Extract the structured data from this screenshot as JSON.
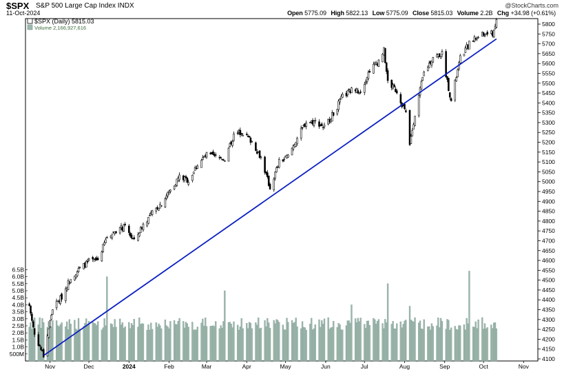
{
  "header": {
    "symbol": "$SPX",
    "name": "S&P 500 Large Cap Index",
    "exchange": "INDX",
    "date": "11-Oct-2024",
    "brand": "@StockCharts.com",
    "open_label": "Open",
    "open": "5775.09",
    "high_label": "High",
    "high": "5822.13",
    "low_label": "Low",
    "low": "5775.09",
    "close_label": "Close",
    "close": "5815.03",
    "volume_label": "Volume",
    "volume": "2.2B",
    "chg_label": "Chg",
    "chg": "+34.98 (+0.61%)"
  },
  "legend": {
    "price": "$SPX (Daily) 5815.03",
    "volume": "Volume 2,166,927,616"
  },
  "colors": {
    "volume_bar": "#9fb8ae",
    "volume_edge": "#6f8f83",
    "trendline": "#0a1fc4",
    "candle": "#000000",
    "grid": "#dddddd"
  },
  "chart_data": {
    "type": "candlestick",
    "title": "$SPX (Daily) 5815.03",
    "price_axis": {
      "ticks": [
        4100,
        4150,
        4200,
        4250,
        4300,
        4350,
        4400,
        4450,
        4500,
        4550,
        4600,
        4650,
        4700,
        4750,
        4800,
        4850,
        4900,
        4950,
        5000,
        5050,
        5100,
        5150,
        5200,
        5250,
        5300,
        5350,
        5400,
        5450,
        5500,
        5550,
        5600,
        5650,
        5700,
        5750,
        5800
      ],
      "ylim": [
        4083,
        5833
      ]
    },
    "volume_axis": {
      "tick_labels": [
        "500M",
        "1.0B",
        "1.5B",
        "2.0B",
        "2.5B",
        "3.0B",
        "3.5B",
        "4.0B",
        "4.5B",
        "5.0B",
        "5.5B",
        "6.0B",
        "6.5B"
      ],
      "tick_values": [
        0.5,
        1.0,
        1.5,
        2.0,
        2.5,
        3.0,
        3.5,
        4.0,
        4.5,
        5.0,
        5.5,
        6.0,
        6.5
      ],
      "unit": "B"
    },
    "x_axis": {
      "labels": [
        "Nov",
        "Dec",
        "2024",
        "Feb",
        "Mar",
        "Apr",
        "May",
        "Jun",
        "Jul",
        "Aug",
        "Sep",
        "Oct",
        "Nov"
      ],
      "dates": [
        "2023-11-01",
        "2023-12-01",
        "2024-01-01",
        "2024-02-01",
        "2024-03-01",
        "2024-04-01",
        "2024-05-01",
        "2024-06-01",
        "2024-07-01",
        "2024-08-01",
        "2024-09-01",
        "2024-10-01",
        "2024-11-01"
      ]
    },
    "series_close": [
      [
        "2023-10-16",
        4370
      ],
      [
        "2023-10-20",
        4225
      ],
      [
        "2023-10-27",
        4117
      ],
      [
        "2023-11-03",
        4358
      ],
      [
        "2023-11-10",
        4415
      ],
      [
        "2023-11-17",
        4514
      ],
      [
        "2023-11-24",
        4559
      ],
      [
        "2023-12-01",
        4594
      ],
      [
        "2023-12-08",
        4604
      ],
      [
        "2023-12-15",
        4719
      ],
      [
        "2023-12-22",
        4754
      ],
      [
        "2023-12-29",
        4770
      ],
      [
        "2024-01-05",
        4697
      ],
      [
        "2024-01-12",
        4783
      ],
      [
        "2024-01-19",
        4840
      ],
      [
        "2024-01-26",
        4891
      ],
      [
        "2024-02-02",
        4958
      ],
      [
        "2024-02-09",
        5026
      ],
      [
        "2024-02-16",
        5005
      ],
      [
        "2024-02-23",
        5088
      ],
      [
        "2024-03-01",
        5137
      ],
      [
        "2024-03-08",
        5124
      ],
      [
        "2024-03-15",
        5117
      ],
      [
        "2024-03-22",
        5234
      ],
      [
        "2024-03-28",
        5254
      ],
      [
        "2024-04-05",
        5204
      ],
      [
        "2024-04-12",
        5123
      ],
      [
        "2024-04-19",
        4967
      ],
      [
        "2024-04-26",
        5100
      ],
      [
        "2024-05-03",
        5128
      ],
      [
        "2024-05-10",
        5223
      ],
      [
        "2024-05-17",
        5303
      ],
      [
        "2024-05-24",
        5305
      ],
      [
        "2024-05-31",
        5278
      ],
      [
        "2024-06-07",
        5347
      ],
      [
        "2024-06-14",
        5431
      ],
      [
        "2024-06-21",
        5465
      ],
      [
        "2024-06-28",
        5460
      ],
      [
        "2024-07-05",
        5567
      ],
      [
        "2024-07-12",
        5615
      ],
      [
        "2024-07-16",
        5667
      ],
      [
        "2024-07-19",
        5505
      ],
      [
        "2024-07-26",
        5459
      ],
      [
        "2024-08-02",
        5346
      ],
      [
        "2024-08-05",
        5186
      ],
      [
        "2024-08-09",
        5344
      ],
      [
        "2024-08-16",
        5554
      ],
      [
        "2024-08-23",
        5634
      ],
      [
        "2024-08-30",
        5648
      ],
      [
        "2024-09-06",
        5408
      ],
      [
        "2024-09-13",
        5626
      ],
      [
        "2024-09-20",
        5703
      ],
      [
        "2024-09-27",
        5738
      ],
      [
        "2024-10-04",
        5751
      ],
      [
        "2024-10-08",
        5751
      ],
      [
        "2024-10-11",
        5815
      ]
    ],
    "trendline": {
      "from": [
        "2023-10-27",
        4117
      ],
      "to": [
        "2024-10-11",
        5725
      ]
    },
    "volume_spikes_billions": [
      [
        "2023-12-15",
        6.0
      ],
      [
        "2024-03-15",
        5.0
      ],
      [
        "2024-06-21",
        4.0
      ],
      [
        "2024-07-19",
        5.5
      ],
      [
        "2024-08-05",
        3.9
      ],
      [
        "2024-09-20",
        6.4
      ]
    ]
  }
}
